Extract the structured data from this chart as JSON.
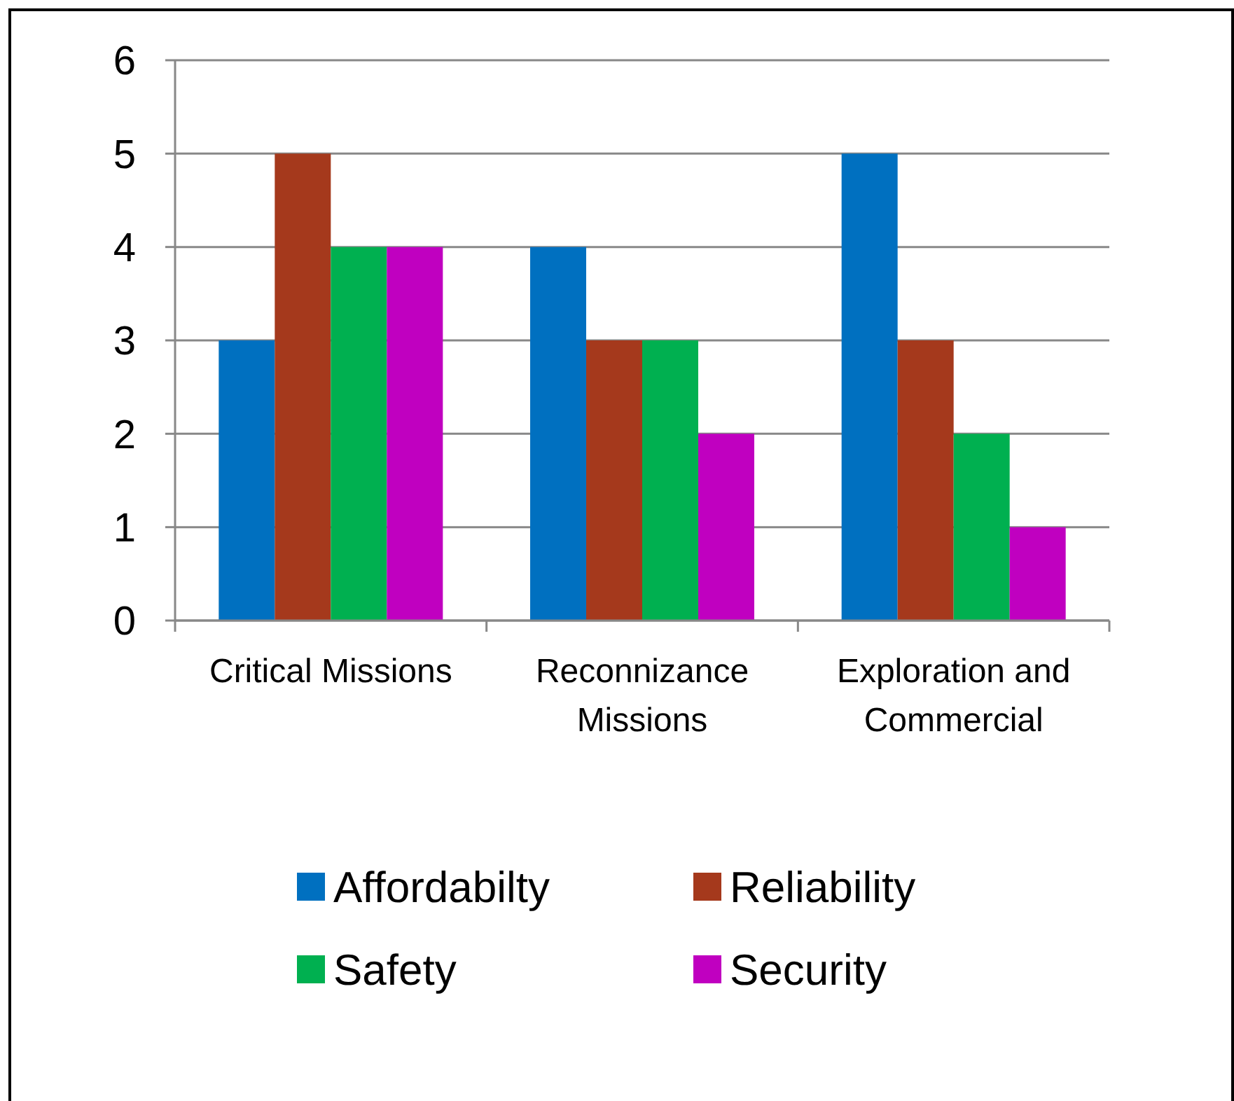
{
  "chart_data": {
    "type": "bar",
    "categories": [
      "Critical Missions",
      "Reconnizance Missions",
      "Exploration and Commercial"
    ],
    "series": [
      {
        "name": "Affordabilty",
        "color": "#0070c0",
        "values": [
          3,
          4,
          5
        ]
      },
      {
        "name": "Reliability",
        "color": "#a5391c",
        "values": [
          5,
          3,
          3
        ]
      },
      {
        "name": "Safety",
        "color": "#00b050",
        "values": [
          4,
          3,
          2
        ]
      },
      {
        "name": "Security",
        "color": "#c000c0",
        "values": [
          4,
          2,
          1
        ]
      }
    ],
    "ylim": [
      0,
      6
    ],
    "yticks": [
      0,
      1,
      2,
      3,
      4,
      5,
      6
    ],
    "grid": "y",
    "legend": "bottom"
  }
}
